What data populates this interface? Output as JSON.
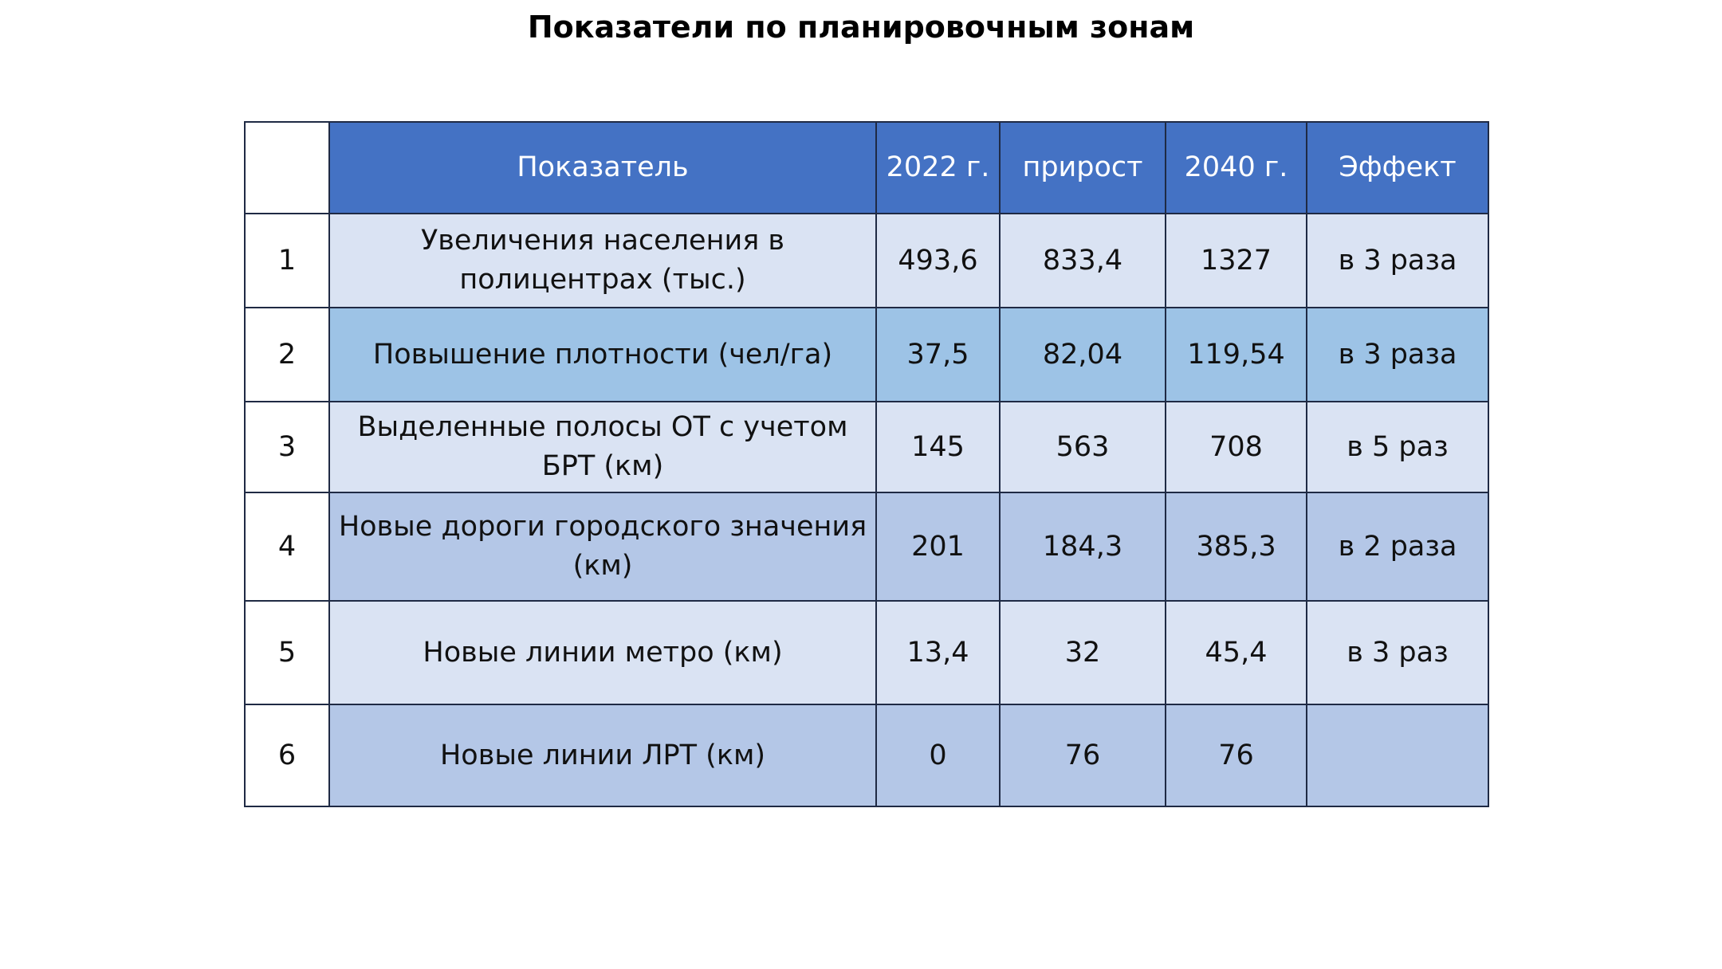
{
  "title": "Показатели по планировочным зонам",
  "table": {
    "headers": {
      "indicator": "Показатель",
      "y2022": "2022 г.",
      "increase": "прирост",
      "y2040": "2040 г.",
      "effect": "Эффект"
    },
    "rows": [
      {
        "num": "1",
        "indicator": "Увеличения населения в полицентрах  (тыс.)",
        "y2022": "493,6",
        "increase": "833,4",
        "y2040": "1327",
        "effect": "в  3 раза"
      },
      {
        "num": "2",
        "indicator": "Повышение плотности (чел/га)",
        "y2022": "37,5",
        "increase": "82,04",
        "y2040": "119,54",
        "effect": "в  3 раза"
      },
      {
        "num": "3",
        "indicator": "Выделенные полосы ОТ с учетом БРТ (км)",
        "y2022": "145",
        "increase": "563",
        "y2040": "708",
        "effect": "в  5 раз"
      },
      {
        "num": "4",
        "indicator": "Новые дороги городского значения (км)",
        "y2022": "201",
        "increase": "184,3",
        "y2040": "385,3",
        "effect": "в  2 раза"
      },
      {
        "num": "5",
        "indicator": "Новые линии метро (км)",
        "y2022": "13,4",
        "increase": "32",
        "y2040": "45,4",
        "effect": "в  3 раз"
      },
      {
        "num": "6",
        "indicator": "Новые линии ЛРТ (км)",
        "y2022": "0",
        "increase": "76",
        "y2040": "76",
        "effect": ""
      }
    ]
  },
  "colors": {
    "header": "#4472c4",
    "row_light": "#dae3f3",
    "row_blue": "#9dc3e6",
    "row_mid": "#b4c7e7",
    "border": "#1f2a44"
  }
}
